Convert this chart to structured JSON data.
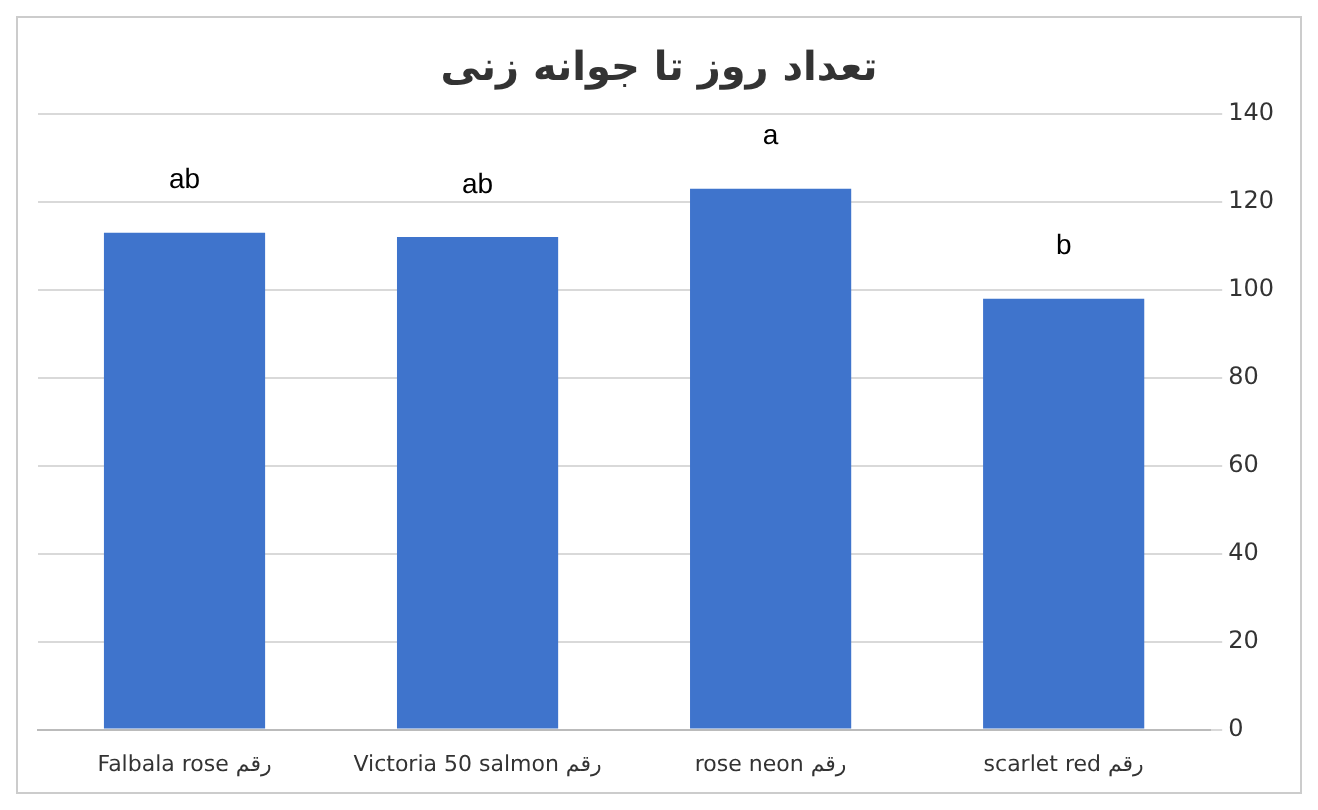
{
  "chart_data": {
    "type": "bar",
    "title": "تعداد روز تا جوانه زنی",
    "categories": [
      "Falbala rose رقم",
      "Victoria 50 salmon رقم",
      "rose neon رقم",
      "scarlet red رقم"
    ],
    "values": [
      113,
      112,
      123,
      98
    ],
    "color": "#3f74cc",
    "ylim": [
      0,
      140
    ],
    "yticks": [
      0,
      20,
      40,
      60,
      80,
      100,
      120,
      140
    ],
    "grid": "y",
    "annotations": [
      {
        "text": "ab",
        "x": "Falbala rose رقم",
        "y": 113
      },
      {
        "text": "ab",
        "x": "Victoria 50 salmon رقم",
        "y": 112
      },
      {
        "text": "a",
        "x": "rose neon رقم",
        "y": 123
      },
      {
        "text": "b",
        "x": "scarlet red رقم",
        "y": 98
      }
    ]
  }
}
